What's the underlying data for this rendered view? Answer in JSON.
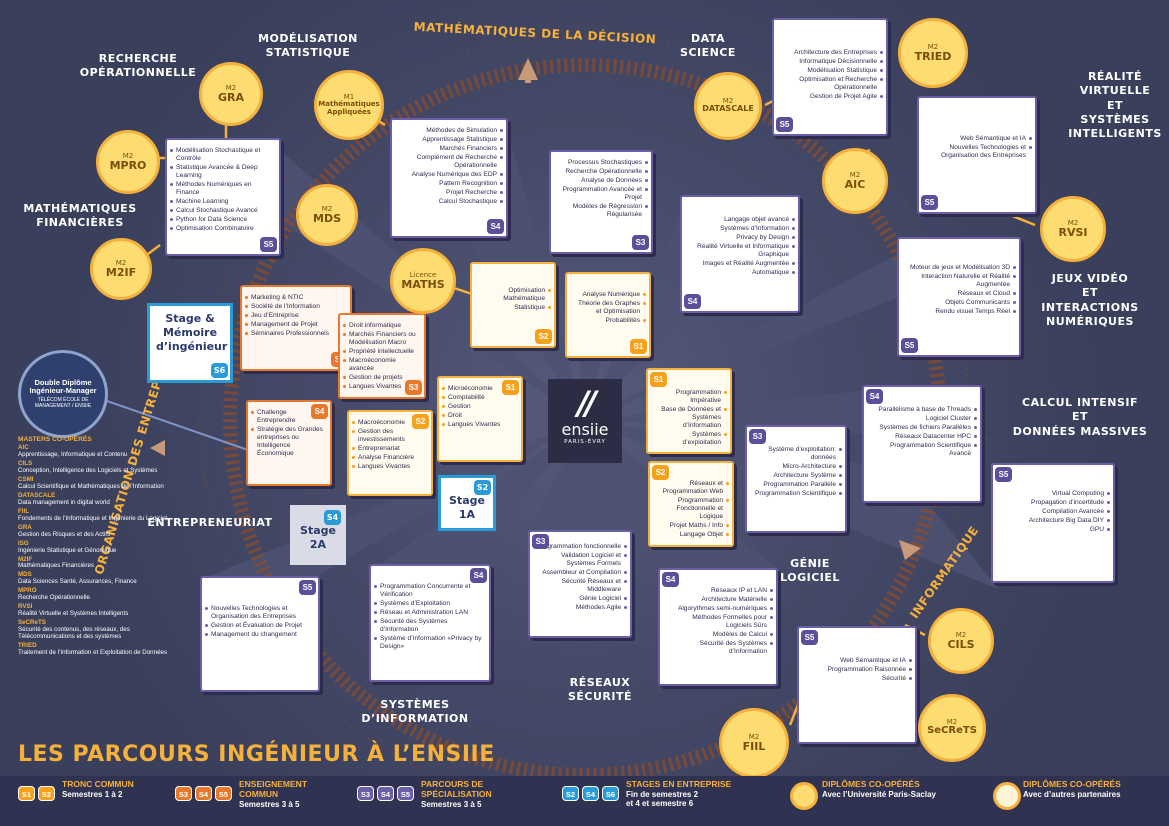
{
  "title": "LES PARCOURS INGÉNIEUR À L’ENSIIE",
  "logo": {
    "marks": "//",
    "name": "ensiie",
    "sub": "PARIS-ÉVRY"
  },
  "colors": {
    "purple": "#6b5fa8",
    "orange": "#e8782c",
    "yellow": "#f5b13b",
    "blue": "#2a9bd6",
    "background": "#3a3f5c"
  },
  "domains": {
    "recherche_op": [
      "RECHERCHE",
      "OPÉRATIONNELLE"
    ],
    "modelisation": [
      "MODÉLISATION",
      "STATISTIQUE"
    ],
    "maths_decision": "MATHÉMATIQUES DE LA DÉCISION",
    "data_science": [
      "DATA",
      "SCIENCE"
    ],
    "realite": [
      "RÉALITÉ",
      "VIRTUELLE",
      "ET",
      "SYSTÈMES",
      "INTELLIGENTS"
    ],
    "maths_fin": [
      "MATHÉMATIQUES",
      "FINANCIÈRES"
    ],
    "jeux": [
      "JEUX VIDÉO",
      "ET",
      "INTERACTIONS",
      "NUMÉRIQUES"
    ],
    "calcul": [
      "CALCUL INTENSIF",
      "ET",
      "DONNÉES MASSIVES"
    ],
    "org": "ORGANISATION DES ENTREPRISES",
    "entrepreneuriat": "ENTREPRENEURIAT",
    "genie": [
      "GÉNIE",
      "LOGICIEL"
    ],
    "informatique": "INFORMATIQUE",
    "reseaux": [
      "RÉSEAUX",
      "SÉCURITÉ"
    ],
    "systemes": [
      "SYSTÈMES",
      "D’INFORMATION"
    ]
  },
  "boxes": {
    "top_s4": {
      "badge": "S4",
      "items": [
        "Méthodes de Simulation",
        "Apprentissage Statistique",
        "Marchés Financiers",
        "Complément de Recherche Opérationnelle",
        "Analyse Numérique des EDP",
        "Pattern Recognition",
        "Projet Recherche",
        "Calcul Stochastique"
      ]
    },
    "top_s3": {
      "badge": "S3",
      "items": [
        "Processus Stochastiques",
        "Recherche Opérationnelle",
        "Analyse de Données",
        "Programmation Avancée et Projet",
        "Modèles de Régression Régularisée"
      ]
    },
    "ds_s5": {
      "badge": "S5",
      "items": [
        "Architecture des Entreprises",
        "Informatique Décisionnelle",
        "Modélisation Statistique",
        "Optimisation et Recherche Opérationnelle",
        "Gestion de Projet Agile"
      ]
    },
    "left_s5": {
      "badge": "S5",
      "items": [
        "Modélisation Stochastique et Contrôle",
        "Statistique Avancée & Deep Learning",
        "Méthodes Numériques en Finance",
        "Machine Learning",
        "Calcul Stochastique Avancé",
        "Python for Data Science",
        "Optimisation Combinatoire"
      ]
    },
    "rv_s5": {
      "badge": "S5",
      "items": [
        "Web Sémantique et IA",
        "Nouvelles Technologies et Organisation des Entreprises"
      ]
    },
    "mid_s4": {
      "badge": "S4",
      "items": [
        "Langage objet avancé",
        "Systèmes d’Information",
        "Privacy by Design",
        "Réalité Virtuelle et Informatique Graphique",
        "Images et Réalité Augmentée",
        "Automatique"
      ]
    },
    "jeux_s5": {
      "badge": "S5",
      "items": [
        "Moteur de jeux et Modélisation 3D",
        "Interaction Naturelle et Réalité Augmentée",
        "Réseaux et Cloud",
        "Objets Communicants",
        "Rendu visuel Temps Réel"
      ]
    },
    "maths_s2": {
      "badge": "S2",
      "items": [
        "Optimisation Mathématique",
        "Statistique"
      ]
    },
    "maths_s1": {
      "badge": "S1",
      "items": [
        "Analyse Numérique",
        "Théorie des Graphes et Optimisation",
        "Probabilités"
      ]
    },
    "org_s5": {
      "badge": "S5",
      "items": [
        "Marketing & NTIC",
        "Société de l’Information",
        "Jeu d’Entreprise",
        "Management de Projet",
        "Séminaires Professionnels"
      ]
    },
    "org_s3": {
      "badge": "S3",
      "items": [
        "Droit informatique",
        "Marchés Financiers ou Modélisation Macro",
        "Propriété intellectuelle",
        "Macroéconomie avancée",
        "Gestion de projets",
        "Langues Vivantes"
      ]
    },
    "eco_s1": {
      "badge": "S1",
      "items": [
        "Microéconomie",
        "Comptabilité",
        "Gestion",
        "Droit",
        "Langues Vivantes"
      ]
    },
    "ent_s4": {
      "badge": "S4",
      "items": [
        "Challenge Entreprendre",
        "Stratégie des Grandes entreprises ou Intelligence Économique"
      ]
    },
    "eco_s2": {
      "badge": "S2",
      "items": [
        "Macroéconomie",
        "Gestion des investissements",
        "Entreprenariat",
        "Analyse Financière",
        "Langues Vivantes"
      ]
    },
    "info_s1": {
      "badge": "S1",
      "items": [
        "Programmation Impérative",
        "Base de Données et Systèmes d’Information",
        "Systèmes d’exploitation"
      ]
    },
    "info_s2": {
      "badge": "S2",
      "items": [
        "Réseaux et Programmation Web",
        "Programmation Fonctionnelle et Logique",
        "Projet Maths / Info",
        "Langage Objet"
      ]
    },
    "gl_s3": {
      "badge": "S3",
      "items": [
        "Système d’exploitation: données",
        "Micro-Architecture",
        "Architecture Système",
        "Programmation Parallèle",
        "Programmation Scientifique"
      ]
    },
    "calc_s4": {
      "badge": "S4",
      "items": [
        "Parallélisme à base de Threads",
        "Logiciel Cluster",
        "Systèmes de fichiers Parallèles",
        "Réseaux Datacenter HPC",
        "Programmation Scientifique Avancé"
      ]
    },
    "calc_s5": {
      "badge": "S5",
      "items": [
        "Virtual Computing",
        "Propagation d’incertitude",
        "Compilation Avancée",
        "Architecture Big Data DIY",
        "GPU"
      ]
    },
    "res_s3": {
      "badge": "S3",
      "items": [
        "Programmation fonctionnelle",
        "Validation Logiciel et Systèmes Formels",
        "Assembleur et Compilation",
        "Sécurité Réseaux et Middleware",
        "Génie Logiciel",
        "Méthodes Agile"
      ]
    },
    "res_s4": {
      "badge": "S4",
      "items": [
        "Réseaux IP et LAN",
        "Architecture Matérielle",
        "Algorythmes semi-numériques",
        "Méthodes Formelles pour Logiciels Sûrs",
        "Modèles de Calcul",
        "Sécurité des Systèmes d’Information"
      ]
    },
    "gl_s5": {
      "badge": "S5",
      "items": [
        "Web Sémantique et IA",
        "Programmation Raisonnée",
        "Sécurité"
      ]
    },
    "si_s4": {
      "badge": "S4",
      "items": [
        "Programmation Concurrente et Vérification",
        "Systèmes d’Exploitation",
        "Réseau et Administration LAN",
        "Sécurité des Systèmes d’Information",
        "Système d’Information «Privacy by Design»"
      ]
    },
    "si_s5": {
      "badge": "S5",
      "items": [
        "Nouvelles Technologies et Organisation des Entreprises",
        "Gestion et Évaluation de Projet",
        "Management du changement"
      ]
    }
  },
  "circles": {
    "gra": {
      "top": "M2",
      "name": "GRA"
    },
    "m1": {
      "top": "M1",
      "name": "Mathématiques Appliquées"
    },
    "mpro": {
      "top": "M2",
      "name": "MPRO"
    },
    "mds": {
      "top": "M2",
      "name": "MDS"
    },
    "m2if": {
      "top": "M2",
      "name": "M2IF"
    },
    "tried": {
      "top": "M2",
      "name": "TRIED"
    },
    "datascale": {
      "top": "M2",
      "name": "DATASCALE"
    },
    "aic": {
      "top": "M2",
      "name": "AIC"
    },
    "rvsi": {
      "top": "M2",
      "name": "RVSI"
    },
    "maths_lic": {
      "top": "Licence",
      "name": "MATHS"
    },
    "cils": {
      "top": "M2",
      "name": "CILS"
    },
    "secrets": {
      "top": "M2",
      "name": "SeCReTS"
    },
    "fiil": {
      "top": "M2",
      "name": "FIIL"
    }
  },
  "stages": {
    "s6": {
      "label": "Stage & Mémoire d’ingénieur",
      "badge": "S6"
    },
    "s4": {
      "label": "Stage 2A",
      "badge": "S4"
    },
    "s2": {
      "label": "Stage 1A",
      "badge": "S2"
    }
  },
  "double_diplome": {
    "title": "Double Diplôme Ingénieur-Manager",
    "sub": "TÉLÉCOM ÉCOLE DE MANAGEMENT / ENSIIE"
  },
  "masters": {
    "header": "MASTERS CO-OPÉRÉS",
    "list": [
      {
        "code": "AIC",
        "desc": "Apprentissage, Informatique et Contenu"
      },
      {
        "code": "CILS",
        "desc": "Conception, Intelligence des Logiciels et Systèmes"
      },
      {
        "code": "CSMI",
        "desc": "Calcul Scientifique et Mathématiques de l’Information"
      },
      {
        "code": "DATASCALE",
        "desc": "Data management in digital world"
      },
      {
        "code": "FIIL",
        "desc": "Fondements de l’Informatique et Ingénierie du Logiciel"
      },
      {
        "code": "GRA",
        "desc": "Gestion des Risques et des Actifs"
      },
      {
        "code": "ISG",
        "desc": "Ingénierie Statistique et Génomique"
      },
      {
        "code": "M2IF",
        "desc": "Mathématiques Financières"
      },
      {
        "code": "MDS",
        "desc": "Data Sciences Santé, Assurances, Finance"
      },
      {
        "code": "MPRO",
        "desc": "Recherche Opérationnelle"
      },
      {
        "code": "RVSI",
        "desc": "Réalité Virtuelle et Systèmes Intelligents"
      },
      {
        "code": "SeCReTS",
        "desc": "Sécurité des contenus, des réseaux, des Télécommunications et des systèmes"
      },
      {
        "code": "TRIED",
        "desc": "Traitement de l’Information et Exploitation de Données"
      }
    ]
  },
  "legend": {
    "tronc": {
      "title": "TRONC COMMUN",
      "sub": "Semestres 1 à 2",
      "badges": [
        "S1",
        "S2"
      ]
    },
    "ens": {
      "title": "ENSEIGNEMENT COMMUN",
      "sub": "Semestres 3 à 5",
      "badges": [
        "S3",
        "S4",
        "S5"
      ]
    },
    "spec": {
      "title": "PARCOURS DE SPÉCIALISATION",
      "sub": "Semestres 3 à 5",
      "badges": [
        "S3",
        "S4",
        "S5"
      ]
    },
    "stages": {
      "title": "STAGES EN ENTREPRISE",
      "sub1": "Fin de semestres 2",
      "sub2": "et 4 et semestre 6",
      "badges": [
        "S2",
        "S4",
        "S6"
      ]
    },
    "dip1": {
      "title": "DIPLÔMES CO-OPÉRÉS",
      "sub": "Avec l’Université Paris-Saclay"
    },
    "dip2": {
      "title": "DIPLÔMES CO-OPÉRÉS",
      "sub": "Avec d’autres partenaires"
    }
  }
}
